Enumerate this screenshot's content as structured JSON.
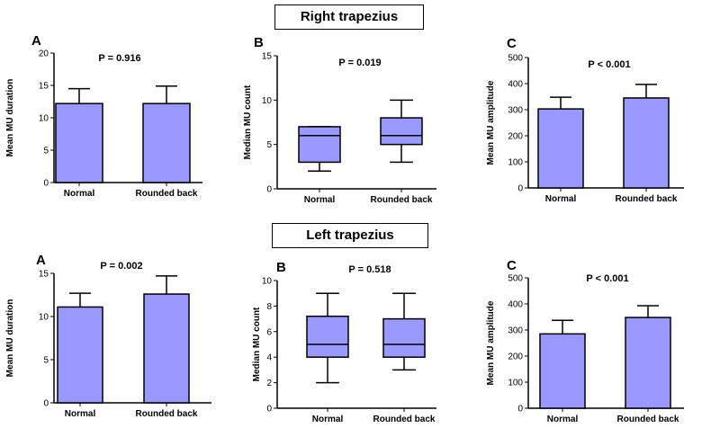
{
  "sections": {
    "right_title": "Right trapezius",
    "left_title": "Left trapezius"
  },
  "colors": {
    "bar_fill": "#9999ff",
    "box_fill": "#9999ff",
    "stroke": "#000000"
  },
  "chart_data": [
    {
      "id": "rA",
      "section": "Right trapezius",
      "panel_label": "A",
      "type": "bar",
      "ylabel": "Mean MU duration",
      "p_value": "P = 0.916",
      "categories": [
        "Normal",
        "Rounded back"
      ],
      "values": [
        12.2,
        12.2
      ],
      "errors": [
        2.3,
        2.7
      ],
      "ylim": [
        0,
        20
      ],
      "yticks": [
        0,
        5,
        10,
        15,
        20
      ]
    },
    {
      "id": "rB",
      "section": "Right trapezius",
      "panel_label": "B",
      "type": "box",
      "ylabel": "Median MU count",
      "p_value": "P = 0.019",
      "categories": [
        "Normal",
        "Rounded back"
      ],
      "boxes": [
        {
          "min": 2,
          "q1": 3,
          "median": 6,
          "q3": 7,
          "max": 7
        },
        {
          "min": 3,
          "q1": 5,
          "median": 6,
          "q3": 8,
          "max": 10
        }
      ],
      "ylim": [
        0,
        15
      ],
      "yticks": [
        0,
        5,
        10,
        15
      ]
    },
    {
      "id": "rC",
      "section": "Right trapezius",
      "panel_label": "C",
      "type": "bar",
      "ylabel": "Mean MU amplitude",
      "p_value": "P < 0.001",
      "categories": [
        "Normal",
        "Rounded back"
      ],
      "values": [
        303,
        345
      ],
      "errors": [
        45,
        52
      ],
      "ylim": [
        0,
        500
      ],
      "yticks": [
        0,
        100,
        200,
        300,
        400,
        500
      ]
    },
    {
      "id": "lA",
      "section": "Left trapezius",
      "panel_label": "A",
      "type": "bar",
      "ylabel": "Mean MU duration",
      "p_value": "P = 0.002",
      "categories": [
        "Normal",
        "Rounded back"
      ],
      "values": [
        11.1,
        12.6
      ],
      "errors": [
        1.6,
        2.1
      ],
      "ylim": [
        0,
        15
      ],
      "yticks": [
        0,
        5,
        10,
        15
      ]
    },
    {
      "id": "lB",
      "section": "Left trapezius",
      "panel_label": "B",
      "type": "box",
      "ylabel": "Median MU count",
      "p_value": "P = 0.518",
      "categories": [
        "Normal",
        "Rounded back"
      ],
      "boxes": [
        {
          "min": 2,
          "q1": 4,
          "median": 5,
          "q3": 7.2,
          "max": 9
        },
        {
          "min": 3,
          "q1": 4,
          "median": 5,
          "q3": 7,
          "max": 9
        }
      ],
      "ylim": [
        0,
        10
      ],
      "yticks": [
        0,
        2,
        4,
        6,
        8,
        10
      ]
    },
    {
      "id": "lC",
      "section": "Left trapezius",
      "panel_label": "C",
      "type": "bar",
      "ylabel": "Mean MU amplitude",
      "p_value": "P < 0.001",
      "categories": [
        "Normal",
        "Rounded back"
      ],
      "values": [
        285,
        348
      ],
      "errors": [
        52,
        45
      ],
      "ylim": [
        0,
        500
      ],
      "yticks": [
        0,
        100,
        200,
        300,
        400,
        500
      ]
    }
  ]
}
